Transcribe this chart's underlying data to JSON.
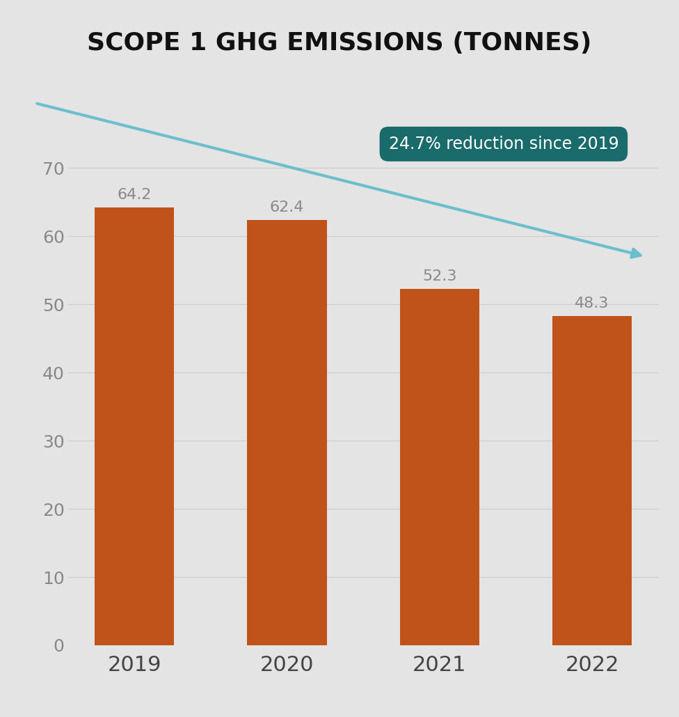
{
  "title": "SCOPE 1 GHG EMISSIONS (TONNES)",
  "categories": [
    "2019",
    "2020",
    "2021",
    "2022"
  ],
  "values": [
    64.2,
    62.4,
    52.3,
    48.3
  ],
  "bar_color": "#c0531a",
  "background_color": "#e4e4e4",
  "yticks": [
    0,
    10,
    20,
    30,
    40,
    50,
    60,
    70
  ],
  "ylim": [
    0,
    82
  ],
  "annotation_text": "24.7% reduction since 2019",
  "annotation_bg_color": "#1a6b6b",
  "annotation_text_color": "#ffffff",
  "arrow_color": "#6bbfcc",
  "label_color": "#888888",
  "xtick_color": "#444444",
  "gridline_color": "#cccccc",
  "title_fontsize": 26,
  "tick_fontsize": 18,
  "xtick_fontsize": 22,
  "bar_label_fontsize": 16,
  "annotation_fontsize": 17
}
